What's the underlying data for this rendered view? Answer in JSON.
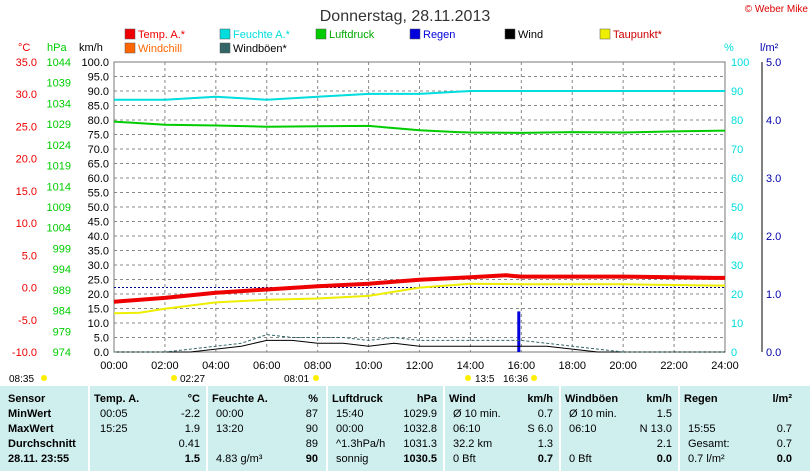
{
  "title": "Donnerstag, 28.11.2013",
  "credit": "© Weber Mike",
  "colors": {
    "temp": "#ee0000",
    "humidity": "#00dddd",
    "pressure": "#00cc00",
    "rain": "#0000dd",
    "wind": "#000000",
    "dewpoint": "#eeee00",
    "windchill": "#ff6600",
    "gust": "#336666",
    "reference": "#000080"
  },
  "axis_units": {
    "temp": "°C",
    "pressure": "hPa",
    "wind": "km/h",
    "humidity": "%",
    "rain": "l/m²"
  },
  "markers": {
    "temp_min": "08:35",
    "humidity_min": "02:27",
    "wind_max": "08:01",
    "pressure_min": "13:5",
    "gust_max": "16:36"
  },
  "chart_data": {
    "type": "line",
    "title": "Donnerstag, 28.11.2013",
    "x_ticks": [
      "00:00",
      "02:00",
      "04:00",
      "06:00",
      "08:00",
      "10:00",
      "12:00",
      "14:00",
      "16:00",
      "18:00",
      "20:00",
      "22:00",
      "24:00"
    ],
    "xlim": [
      0,
      24
    ],
    "axes": {
      "temp": {
        "label": "°C",
        "range": [
          -10,
          35
        ],
        "ticks": [
          "35.0",
          "30.0",
          "25.0",
          "20.0",
          "15.0",
          "10.0",
          "5.0",
          "0.0",
          "-5.0",
          "-10.0"
        ]
      },
      "pressure": {
        "label": "hPa",
        "range": [
          974,
          1048
        ],
        "ticks": [
          "1044",
          "1039",
          "1034",
          "1029",
          "1024",
          "1019",
          "1014",
          "1009",
          "1004",
          "999",
          "994",
          "989",
          "984",
          "979",
          "974"
        ]
      },
      "wind": {
        "label": "km/h",
        "range": [
          0,
          100
        ],
        "ticks": [
          "100.0",
          "95.0",
          "90.0",
          "85.0",
          "80.0",
          "75.0",
          "70.0",
          "65.0",
          "60.0",
          "55.0",
          "50.0",
          "45.0",
          "40.0",
          "35.0",
          "30.0",
          "25.0",
          "20.0",
          "15.0",
          "10.0",
          "5.0",
          "0.0"
        ]
      },
      "humidity": {
        "label": "%",
        "range": [
          0,
          100
        ],
        "ticks": [
          "100",
          "90",
          "80",
          "70",
          "60",
          "50",
          "40",
          "30",
          "20",
          "10",
          "0"
        ]
      },
      "rain": {
        "label": "l/m²",
        "range": [
          0,
          5
        ],
        "ticks": [
          "5.0",
          "4.0",
          "3.0",
          "2.0",
          "1.0",
          "0.0"
        ]
      }
    },
    "legend": [
      {
        "name": "Temp. A.*",
        "color": "#ee0000"
      },
      {
        "name": "Feuchte A.*",
        "color": "#00dddd"
      },
      {
        "name": "Luftdruck",
        "color": "#00cc00"
      },
      {
        "name": "Regen",
        "color": "#0000dd"
      },
      {
        "name": "Wind",
        "color": "#000000"
      },
      {
        "name": "Taupunkt*",
        "color": "#eeee00"
      },
      {
        "name": "Windchill",
        "color": "#ff6600"
      },
      {
        "name": "Windböen*",
        "color": "#336666"
      }
    ],
    "reference_line": {
      "axis": "temp",
      "value": 0
    },
    "series": [
      {
        "name": "Temp. A.*",
        "axis": "temp",
        "color": "#ee0000",
        "width": 4,
        "x": [
          0,
          2,
          4,
          6,
          8,
          10,
          12,
          14,
          15.4,
          16,
          18,
          20,
          22,
          23.5,
          24
        ],
        "y": [
          -2.2,
          -1.6,
          -0.8,
          -0.3,
          0.2,
          0.6,
          1.2,
          1.6,
          1.9,
          1.7,
          1.7,
          1.7,
          1.6,
          1.5,
          1.5
        ]
      },
      {
        "name": "Taupunkt*",
        "axis": "temp",
        "color": "#eeee00",
        "width": 2,
        "x": [
          0,
          1,
          2,
          4,
          6,
          8,
          10,
          12,
          14,
          16,
          18,
          20,
          22,
          24
        ],
        "y": [
          -4.0,
          -3.9,
          -3.3,
          -2.3,
          -1.9,
          -1.7,
          -1.3,
          0.0,
          0.6,
          0.5,
          0.5,
          0.5,
          0.4,
          0.3
        ]
      },
      {
        "name": "Feuchte A.*",
        "axis": "humidity",
        "color": "#00dddd",
        "width": 2,
        "x": [
          0,
          2,
          4,
          6,
          8,
          10,
          12,
          14,
          16,
          18,
          20,
          22,
          24
        ],
        "y": [
          87,
          87,
          88,
          87,
          88,
          89,
          89,
          90,
          90,
          90,
          90,
          90,
          90
        ]
      },
      {
        "name": "Luftdruck",
        "axis": "pressure",
        "color": "#00cc00",
        "width": 2,
        "x": [
          0,
          2,
          4,
          6,
          8,
          10,
          12,
          13.5,
          14,
          16,
          18,
          20,
          22,
          24
        ],
        "y": [
          1032.8,
          1032.0,
          1031.8,
          1031.5,
          1031.6,
          1031.7,
          1030.6,
          1030.1,
          1030.0,
          1029.9,
          1030.1,
          1030.0,
          1030.3,
          1030.5
        ]
      },
      {
        "name": "Wind",
        "axis": "wind",
        "color": "#000000",
        "width": 1,
        "x": [
          0,
          1,
          2,
          3,
          4,
          5,
          6,
          7,
          8,
          9,
          10,
          11,
          12,
          13,
          14,
          15,
          16,
          17,
          18,
          19,
          20,
          21,
          22,
          23,
          24
        ],
        "y": [
          0,
          0,
          0,
          0,
          1,
          2,
          4,
          4,
          3,
          3,
          2,
          3,
          2,
          2,
          2,
          2,
          2,
          2,
          1,
          0,
          0,
          0,
          0,
          0,
          0
        ]
      },
      {
        "name": "Windböen*",
        "axis": "wind",
        "color": "#336666",
        "width": 1,
        "dash": true,
        "x": [
          0,
          1,
          2,
          3,
          4,
          5,
          6,
          7,
          8,
          9,
          10,
          11,
          12,
          13,
          14,
          15,
          16,
          17,
          18,
          19,
          20,
          21,
          22,
          23,
          24
        ],
        "y": [
          0,
          0,
          0,
          1,
          2,
          3,
          6,
          5,
          5,
          5,
          4,
          5,
          4,
          4,
          4,
          4,
          4,
          3,
          2,
          1,
          0,
          0,
          0,
          0,
          0
        ]
      }
    ],
    "rain_bars": {
      "axis": "rain",
      "color": "#0000dd",
      "x": [
        15.9
      ],
      "y": [
        0.7
      ]
    }
  },
  "table": {
    "headers": {
      "sensor": "Sensor",
      "temp": "Temp. A.",
      "temp_unit": "°C",
      "humidity": "Feuchte A.",
      "humidity_unit": "%",
      "pressure": "Luftdruck",
      "pressure_unit": "hPa",
      "wind": "Wind",
      "wind_unit": "km/h",
      "gust": "Windböen",
      "gust_unit": "km/h",
      "rain": "Regen",
      "rain_unit": "l/m²"
    },
    "rows": [
      {
        "label": "MinWert",
        "temp_time": "00:05",
        "temp_val": "-2.2",
        "hum_time": "00:00",
        "hum_val": "87",
        "pres_time": "15:40",
        "pres_val": "1029.9",
        "wind_time": "Ø 10 min.",
        "wind_val": "0.7",
        "gust_time": "Ø 10 min.",
        "gust_val": "1.5",
        "rain_time": "",
        "rain_val": ""
      },
      {
        "label": "MaxWert",
        "temp_time": "15:25",
        "temp_val": "1.9",
        "hum_time": "13:20",
        "hum_val": "90",
        "pres_time": "00:00",
        "pres_val": "1032.8",
        "wind_time": "06:10",
        "wind_val": "S 6.0",
        "gust_time": "06:10",
        "gust_val": "N 13.0",
        "rain_time": "15:55",
        "rain_val": "0.7"
      },
      {
        "label": "Durchschnitt",
        "temp_time": "",
        "temp_val": "0.41",
        "hum_time": "",
        "hum_val": "89",
        "pres_time": "^1.3hPa/h",
        "pres_val": "1031.3",
        "wind_time": "32.2 km",
        "wind_val": "1.3",
        "gust_time": "",
        "gust_val": "2.1",
        "rain_time": "Gesamt:",
        "rain_val": "0.7"
      },
      {
        "label": "28.11. 23:55",
        "temp_time": "",
        "temp_val": "1.5",
        "hum_time": "4.83 g/m³",
        "hum_val": "90",
        "pres_time": "sonnig",
        "pres_val": "1030.5",
        "wind_time": "0 Bft",
        "wind_val": "0.7",
        "gust_time": "0 Bft",
        "gust_val": "0.0",
        "rain_time": "0.7 l/m²",
        "rain_val": "0.0"
      }
    ]
  }
}
